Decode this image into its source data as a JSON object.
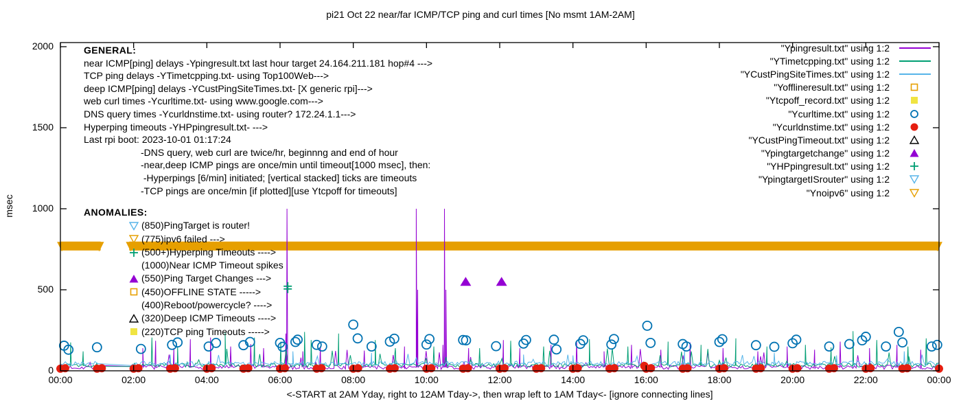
{
  "title": "pi21 Oct 22  near/far ICMP/TCP ping and curl times [No msmt 1AM-2AM]",
  "y_axis": {
    "label": "msec",
    "ticks": [
      0,
      500,
      1000,
      1500,
      2000
    ],
    "max": 2000
  },
  "x_axis": {
    "tick_labels": [
      "00:00",
      "02:00",
      "04:00",
      "06:00",
      "08:00",
      "10:00",
      "12:00",
      "14:00",
      "16:00",
      "18:00",
      "20:00",
      "22:00",
      "00:00"
    ],
    "hours": 24,
    "caption": "<-START at 2AM Yday, right to 12AM Tday->, then wrap left to 1AM Tday<- [ignore connecting lines]"
  },
  "general": {
    "heading": "GENERAL:",
    "lines": [
      "near ICMP[ping] delays -Ypingresult.txt last hour target 24.164.211.181 hop#4 --->",
      "TCP ping delays -YTimetcpping.txt- using Top100Web--->",
      "deep ICMP[ping] delays -YCustPingSiteTimes.txt- [X generic rpi]--->",
      "web curl times -Ycurltime.txt- using www.google.com--->",
      "DNS query times -Ycurldnstime.txt- using router? 172.24.1.1--->",
      "Hyperping timeouts -YHPpingresult.txt- --->",
      "Last rpi boot: 2023-10-01 01:17:24"
    ],
    "indented_lines": [
      "-DNS query, web curl are twice/hr, beginnng and end of hour",
      "-near,deep ICMP pings are once/min until timeout[1000 msec], then:",
      " -Hyperpings [6/min] initiated; [vertical stacked] ticks are timeouts",
      "-TCP pings are once/min [if plotted][use Ytcpoff for timeouts]"
    ]
  },
  "anomalies": {
    "heading": "ANOMALIES:",
    "items": [
      {
        "marker": "tri-down-open",
        "color": "#56B4E9",
        "text": "(850)PingTarget is router!"
      },
      {
        "marker": "tri-down-open",
        "color": "#E69F00",
        "text": "(775)ipv6 failed --->"
      },
      {
        "marker": "plus",
        "color": "#009E73",
        "text": "(500+)Hyperping Timeouts ---->"
      },
      {
        "marker": "none",
        "color": "#000000",
        "text": "(1000)Near ICMP Timeout spikes"
      },
      {
        "marker": "tri-up-filled",
        "color": "#9400D3",
        "text": "(550)Ping Target Changes --->"
      },
      {
        "marker": "square-open",
        "color": "#E69F00",
        "text": "(450)OFFLINE STATE ----->"
      },
      {
        "marker": "none",
        "color": "#000000",
        "text": "(400)Reboot/powercycle? ---->"
      },
      {
        "marker": "tri-up-open",
        "color": "#000000",
        "text": "(320)Deep ICMP Timeouts ---->"
      },
      {
        "marker": "square-filled",
        "color": "#F0E442",
        "text": "(220)TCP ping Timeouts ----->"
      }
    ]
  },
  "legend": [
    {
      "label": "\"Ypingresult.txt\" using 1:2",
      "marker": "line",
      "color": "#9400D3"
    },
    {
      "label": "\"YTimetcpping.txt\" using 1:2",
      "marker": "line",
      "color": "#009E73"
    },
    {
      "label": "\"YCustPingSiteTimes.txt\" using 1:2",
      "marker": "line",
      "color": "#56B4E9"
    },
    {
      "label": "\"Yofflineresult.txt\" using 1:2",
      "marker": "square-open",
      "color": "#E69F00"
    },
    {
      "label": "\"Ytcpoff_record.txt\" using 1:2",
      "marker": "square-filled",
      "color": "#F0E442"
    },
    {
      "label": "\"Ycurltime.txt\" using 1:2",
      "marker": "circle-open",
      "color": "#0072B2"
    },
    {
      "label": "\"Ycurldnstime.txt\" using 1:2",
      "marker": "circle-filled",
      "color": "#E51E10"
    },
    {
      "label": "\"YCustPingTimeout.txt\" using 1:2",
      "marker": "tri-up-open",
      "color": "#000000"
    },
    {
      "label": "\"Ypingtargetchange\" using 1:2",
      "marker": "tri-up-filled",
      "color": "#9400D3"
    },
    {
      "label": "\"YHPpingresult.txt\" using 1:2",
      "marker": "plus",
      "color": "#009E73"
    },
    {
      "label": "\"YpingtargetISrouter\" using 1:2",
      "marker": "tri-down-open",
      "color": "#56B4E9"
    },
    {
      "label": "\"Ynoipv6\" using 1:2",
      "marker": "tri-down-open",
      "color": "#E69F00"
    }
  ],
  "chart_data": {
    "type": "line+scatter",
    "x_unit": "hour_of_day",
    "x_range": [
      0,
      24
    ],
    "y_unit": "msec",
    "ylim": [
      0,
      2000
    ],
    "no_measurement_gap_hours": [
      1.05,
      1.9
    ],
    "line_series": [
      {
        "name": "Ypingresult",
        "color": "#9400D3",
        "baseline": 22,
        "jitter": 13,
        "seed": 7,
        "spike_p": 0.06,
        "spike_max": 120,
        "spikes": [
          [
            2.25,
            140
          ],
          [
            2.6,
            185
          ],
          [
            3.1,
            140
          ],
          [
            3.55,
            195
          ],
          [
            4.1,
            205
          ],
          [
            4.65,
            150
          ],
          [
            5.2,
            165
          ],
          [
            5.55,
            140
          ],
          [
            6.16,
            230
          ],
          [
            6.19,
            1000
          ],
          [
            6.62,
            120
          ],
          [
            7.1,
            150
          ],
          [
            8.3,
            125
          ],
          [
            9.4,
            150
          ],
          [
            9.72,
            1000
          ],
          [
            9.76,
            500
          ],
          [
            10.45,
            160
          ],
          [
            10.49,
            1000
          ],
          [
            10.53,
            500
          ],
          [
            11.15,
            140
          ],
          [
            12.1,
            190
          ],
          [
            12.55,
            140
          ],
          [
            13.4,
            160
          ],
          [
            14.1,
            185
          ],
          [
            14.85,
            120
          ],
          [
            15.6,
            160
          ],
          [
            16.4,
            130
          ],
          [
            17.2,
            175
          ],
          [
            18.1,
            140
          ],
          [
            19.05,
            120
          ],
          [
            19.85,
            150
          ],
          [
            20.6,
            130
          ],
          [
            21.3,
            180
          ],
          [
            22.1,
            140
          ],
          [
            22.85,
            160
          ],
          [
            23.5,
            130
          ]
        ]
      },
      {
        "name": "YTimetcpping",
        "color": "#009E73",
        "baseline": 35,
        "jitter": 12,
        "seed": 13,
        "spike_p": 0.07,
        "spike_max": 110,
        "spikes": [
          [
            0.28,
            175
          ],
          [
            0.62,
            120
          ],
          [
            2.5,
            205
          ],
          [
            3.2,
            150
          ],
          [
            4.5,
            235
          ],
          [
            5.3,
            205
          ],
          [
            6.02,
            180
          ],
          [
            6.67,
            240
          ],
          [
            6.85,
            190
          ],
          [
            7.6,
            230
          ],
          [
            8.6,
            190
          ],
          [
            9.15,
            140
          ],
          [
            10.2,
            150
          ],
          [
            11.45,
            140
          ],
          [
            12.3,
            185
          ],
          [
            13.2,
            150
          ],
          [
            14.45,
            195
          ],
          [
            15.5,
            150
          ],
          [
            16.6,
            180
          ],
          [
            17.5,
            160
          ],
          [
            18.45,
            200
          ],
          [
            19.3,
            150
          ],
          [
            20.35,
            160
          ],
          [
            21.05,
            145
          ],
          [
            21.65,
            245
          ],
          [
            22.3,
            190
          ],
          [
            23.15,
            150
          ],
          [
            23.65,
            200
          ]
        ]
      },
      {
        "name": "YCustPingSiteTimes",
        "color": "#56B4E9",
        "baseline": 45,
        "jitter": 15,
        "seed": 21,
        "spike_p": 0.05,
        "spike_max": 60,
        "spikes": [
          [
            3.0,
            100
          ],
          [
            6.35,
            120
          ],
          [
            8.5,
            110
          ],
          [
            12.65,
            100
          ],
          [
            14.0,
            95
          ],
          [
            17.05,
            130
          ],
          [
            19.5,
            110
          ],
          [
            21.2,
            95
          ],
          [
            23.05,
            120
          ]
        ]
      }
    ],
    "scatter_series": [
      {
        "name": "Ycurltime",
        "marker": "circle-open",
        "color": "#0072B2",
        "points": [
          [
            0.1,
            155
          ],
          [
            0.22,
            130
          ],
          [
            1.0,
            145
          ],
          [
            2.2,
            135
          ],
          [
            3.05,
            160
          ],
          [
            3.2,
            175
          ],
          [
            4.05,
            150
          ],
          [
            4.25,
            172
          ],
          [
            5.0,
            158
          ],
          [
            5.18,
            178
          ],
          [
            6.0,
            172
          ],
          [
            6.07,
            148
          ],
          [
            6.42,
            178
          ],
          [
            6.48,
            192
          ],
          [
            7.0,
            160
          ],
          [
            7.15,
            150
          ],
          [
            8.0,
            285
          ],
          [
            8.12,
            200
          ],
          [
            8.5,
            150
          ],
          [
            9.0,
            180
          ],
          [
            9.12,
            198
          ],
          [
            10.0,
            162
          ],
          [
            10.08,
            196
          ],
          [
            11.0,
            190
          ],
          [
            11.08,
            188
          ],
          [
            11.9,
            152
          ],
          [
            12.65,
            168
          ],
          [
            12.72,
            190
          ],
          [
            13.48,
            192
          ],
          [
            13.55,
            132
          ],
          [
            14.2,
            166
          ],
          [
            14.28,
            188
          ],
          [
            15.05,
            162
          ],
          [
            15.12,
            196
          ],
          [
            16.03,
            278
          ],
          [
            16.12,
            172
          ],
          [
            17.0,
            165
          ],
          [
            17.1,
            150
          ],
          [
            18.0,
            178
          ],
          [
            18.08,
            195
          ],
          [
            19.0,
            158
          ],
          [
            19.5,
            148
          ],
          [
            20.0,
            170
          ],
          [
            20.1,
            192
          ],
          [
            21.0,
            150
          ],
          [
            21.55,
            165
          ],
          [
            21.9,
            188
          ],
          [
            22.0,
            210
          ],
          [
            22.55,
            150
          ],
          [
            22.9,
            240
          ],
          [
            23.0,
            175
          ],
          [
            23.8,
            150
          ],
          [
            23.95,
            160
          ]
        ]
      },
      {
        "name": "Ycurldnstime",
        "marker": "circle-filled",
        "color": "#E51E10",
        "hourly_pattern": {
          "from": 0,
          "to": 24,
          "y": 13,
          "pair_offset": 0.13,
          "pair_y": 16
        },
        "points": [
          [
            15.95,
            30
          ]
        ]
      },
      {
        "name": "Ypingtargetchange",
        "marker": "tri-up-filled",
        "color": "#9400D3",
        "points": [
          [
            11.07,
            550
          ],
          [
            12.05,
            550
          ]
        ]
      },
      {
        "name": "YHPpingresult",
        "marker": "plus",
        "color": "#009E73",
        "points": [
          [
            6.21,
            505
          ],
          [
            6.21,
            522
          ]
        ]
      },
      {
        "name": "YCustPingTimeout",
        "marker": "tri-up-open",
        "color": "#000000",
        "points": []
      },
      {
        "name": "YpingtargetISrouter",
        "marker": "tri-down-open",
        "color": "#56B4E9",
        "points": []
      }
    ],
    "band_series": {
      "name": "Ynoipv6",
      "marker": "tri-down-open",
      "color": "#E69F00",
      "y": 770,
      "thickness_px": 13,
      "segments": [
        [
          0,
          1.1
        ],
        [
          1.88,
          24
        ]
      ],
      "end_triangle_hours": [
        0.04,
        1.06,
        1.92,
        23.96
      ]
    }
  }
}
